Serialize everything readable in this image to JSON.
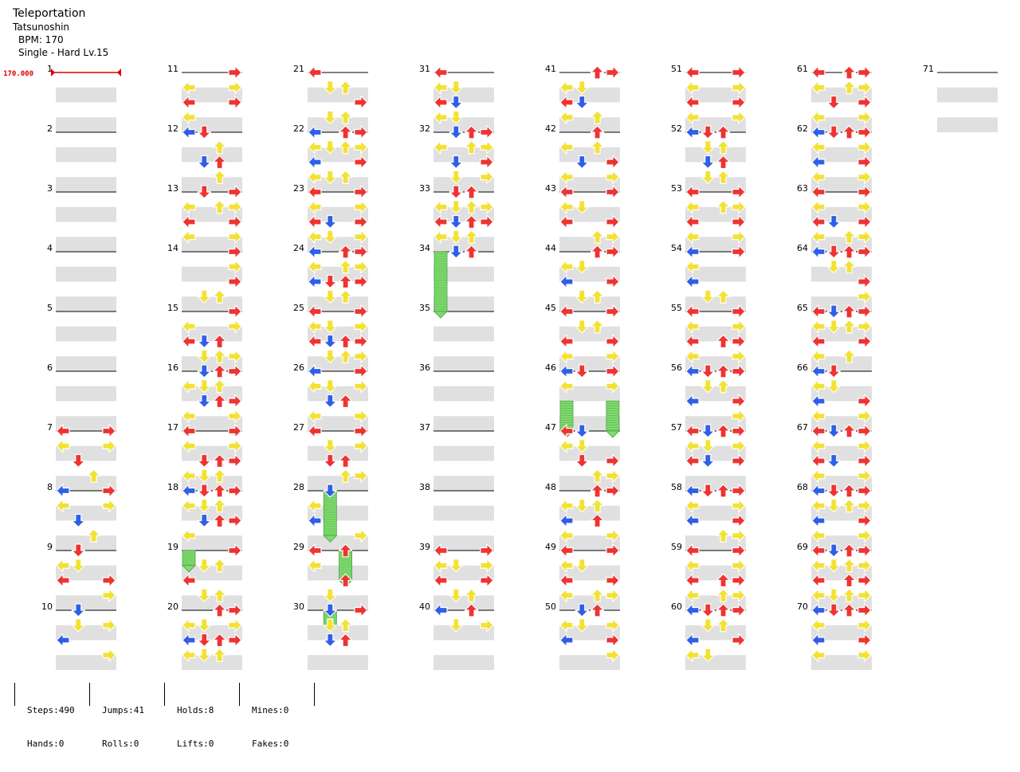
{
  "song": {
    "title": "Teleportation",
    "artist": "Tatsunoshin",
    "bpm_label": "BPM: 170",
    "chart_label": "Single - Hard  Lv.15"
  },
  "bpm_marker": {
    "measure": 1,
    "value_label": "170.000"
  },
  "measures": {
    "first": 1,
    "last": 71,
    "per_column": 10,
    "columns": 8
  },
  "colors": {
    "red": "#ee3333",
    "blue": "#2f5fe6",
    "yellow": "#f2e233",
    "hold": "#7edc6e",
    "stripe": "#e0e0e0",
    "line": "#000000",
    "bpm": "#dd0000"
  },
  "note_icons": {
    "left": "left-arrow-icon",
    "down": "down-arrow-icon",
    "up": "up-arrow-icon",
    "right": "right-arrow-icon"
  },
  "stats": [
    {
      "a": "Steps:490",
      "b": "Hands:0"
    },
    {
      "a": "Jumps:41",
      "b": "Rolls:0"
    },
    {
      "a": "Holds:8",
      "b": "Lifts:0"
    },
    {
      "a": "Mines:0",
      "b": "Fakes:0"
    }
  ],
  "notes": [
    {
      "m": 7,
      "b": 0,
      "l": "LR"
    },
    {
      "m": 7,
      "b": 1,
      "l": "LR"
    },
    {
      "m": 7,
      "b": 2,
      "l": "D"
    },
    {
      "m": 7,
      "b": 3,
      "l": "U"
    },
    {
      "m": 8,
      "b": 0,
      "l": "LR"
    },
    {
      "m": 8,
      "b": 1,
      "l": "LR"
    },
    {
      "m": 8,
      "b": 2,
      "l": "D"
    },
    {
      "m": 8,
      "b": 3,
      "l": "U"
    },
    {
      "m": 9,
      "b": 0,
      "l": "D"
    },
    {
      "m": 9,
      "b": 1,
      "l": "LD"
    },
    {
      "m": 9,
      "b": 2,
      "l": "LR"
    },
    {
      "m": 9,
      "b": 3,
      "l": "R"
    },
    {
      "m": 10,
      "b": 0,
      "l": "D"
    },
    {
      "m": 10,
      "b": 1,
      "l": "DR"
    },
    {
      "m": 10,
      "b": 2,
      "l": "L"
    },
    {
      "m": 10,
      "b": 3,
      "l": "R"
    },
    {
      "m": 11,
      "b": 0,
      "l": "R"
    },
    {
      "m": 11,
      "b": 1,
      "l": "LR"
    },
    {
      "m": 11,
      "b": 2,
      "l": "LR"
    },
    {
      "m": 11,
      "b": 3,
      "l": "L"
    },
    {
      "m": 12,
      "b": 0,
      "l": "LD"
    },
    {
      "m": 12,
      "b": 1,
      "l": "U"
    },
    {
      "m": 12,
      "b": 2,
      "l": "DU"
    },
    {
      "m": 12,
      "b": 3,
      "l": "U"
    },
    {
      "m": 13,
      "b": 0,
      "l": "DR"
    },
    {
      "m": 13,
      "b": 1,
      "l": "LUR"
    },
    {
      "m": 13,
      "b": 2,
      "l": "LR"
    },
    {
      "m": 13,
      "b": 3,
      "l": "LR"
    },
    {
      "m": 14,
      "b": 0,
      "l": "R"
    },
    {
      "m": 14,
      "b": 1,
      "l": "R"
    },
    {
      "m": 14,
      "b": 2,
      "l": "R"
    },
    {
      "m": 14,
      "b": 3,
      "l": "DU"
    },
    {
      "m": 15,
      "b": 0,
      "l": "R"
    },
    {
      "m": 15,
      "b": 1,
      "l": "LR"
    },
    {
      "m": 15,
      "b": 2,
      "l": "LDU"
    },
    {
      "m": 15,
      "b": 3,
      "l": "DUR"
    },
    {
      "m": 16,
      "b": 0,
      "l": "DUR"
    },
    {
      "m": 16,
      "b": 1,
      "l": "LDU"
    },
    {
      "m": 16,
      "b": 2,
      "l": "DUR"
    },
    {
      "m": 16,
      "b": 3,
      "l": "LR"
    },
    {
      "m": 17,
      "b": 0,
      "l": "LR"
    },
    {
      "m": 17,
      "b": 1,
      "l": "LR"
    },
    {
      "m": 17,
      "b": 2,
      "l": "DUR"
    },
    {
      "m": 17,
      "b": 3,
      "l": "LDU"
    },
    {
      "m": 18,
      "b": 0,
      "l": "LDUR"
    },
    {
      "m": 18,
      "b": 1,
      "l": "LDU"
    },
    {
      "m": 18,
      "b": 2,
      "l": "DUR"
    },
    {
      "m": 18,
      "b": 3,
      "l": "L"
    },
    {
      "m": 19,
      "b": 0,
      "l": "R"
    },
    {
      "m": 19,
      "b": 1,
      "l": "DU"
    },
    {
      "m": 19,
      "b": 2,
      "l": "L"
    },
    {
      "m": 19,
      "b": 3,
      "l": "DU"
    },
    {
      "m": 20,
      "b": 0,
      "l": "UR"
    },
    {
      "m": 20,
      "b": 1,
      "l": "LDR"
    },
    {
      "m": 20,
      "b": 2,
      "l": "LDUR"
    },
    {
      "m": 20,
      "b": 3,
      "l": "LDU"
    },
    {
      "m": 21,
      "b": 0,
      "l": "L"
    },
    {
      "m": 21,
      "b": 1,
      "l": "DU"
    },
    {
      "m": 21,
      "b": 2,
      "l": "R"
    },
    {
      "m": 21,
      "b": 3,
      "l": "DU"
    },
    {
      "m": 22,
      "b": 0,
      "l": "LUR"
    },
    {
      "m": 22,
      "b": 1,
      "l": "LDUR"
    },
    {
      "m": 22,
      "b": 2,
      "l": "LR"
    },
    {
      "m": 22,
      "b": 3,
      "l": "LDU"
    },
    {
      "m": 23,
      "b": 0,
      "l": "LR"
    },
    {
      "m": 23,
      "b": 1,
      "l": "LR"
    },
    {
      "m": 23,
      "b": 2,
      "l": "LDR"
    },
    {
      "m": 23,
      "b": 3,
      "l": "LDR"
    },
    {
      "m": 24,
      "b": 0,
      "l": "LUR"
    },
    {
      "m": 24,
      "b": 1,
      "l": "LUR"
    },
    {
      "m": 24,
      "b": 2,
      "l": "LDUR"
    },
    {
      "m": 24,
      "b": 3,
      "l": "DU"
    },
    {
      "m": 25,
      "b": 0,
      "l": "LR"
    },
    {
      "m": 25,
      "b": 1,
      "l": "LDR"
    },
    {
      "m": 25,
      "b": 2,
      "l": "LDUR"
    },
    {
      "m": 25,
      "b": 3,
      "l": "DUR"
    },
    {
      "m": 26,
      "b": 0,
      "l": "LR"
    },
    {
      "m": 26,
      "b": 1,
      "l": "LDR"
    },
    {
      "m": 26,
      "b": 2,
      "l": "DU"
    },
    {
      "m": 26,
      "b": 3,
      "l": "LR"
    },
    {
      "m": 27,
      "b": 0,
      "l": "LR"
    },
    {
      "m": 27,
      "b": 1,
      "l": "DR"
    },
    {
      "m": 27,
      "b": 2,
      "l": "DU"
    },
    {
      "m": 27,
      "b": 3,
      "l": "UR"
    },
    {
      "m": 28,
      "b": 0,
      "l": "D"
    },
    {
      "m": 28,
      "b": 1,
      "l": "L"
    },
    {
      "m": 28,
      "b": 2,
      "l": "L"
    },
    {
      "m": 28,
      "b": 3,
      "l": "R"
    },
    {
      "m": 29,
      "b": 0,
      "l": "LU"
    },
    {
      "m": 29,
      "b": 1,
      "l": "L"
    },
    {
      "m": 29,
      "b": 2,
      "l": "U"
    },
    {
      "m": 29,
      "b": 3,
      "l": "D"
    },
    {
      "m": 30,
      "b": 0,
      "l": "DR"
    },
    {
      "m": 30,
      "b": 1,
      "l": "DU"
    },
    {
      "m": 30,
      "b": 2,
      "l": "DU"
    },
    {
      "m": 30,
      "b": 3,
      "l": ""
    },
    {
      "m": 31,
      "b": 0,
      "l": "L"
    },
    {
      "m": 31,
      "b": 1,
      "l": "LD"
    },
    {
      "m": 31,
      "b": 2,
      "l": "LD"
    },
    {
      "m": 31,
      "b": 3,
      "l": "LD"
    },
    {
      "m": 32,
      "b": 0,
      "l": "DUR"
    },
    {
      "m": 32,
      "b": 1,
      "l": "LUR"
    },
    {
      "m": 32,
      "b": 2,
      "l": "DR"
    },
    {
      "m": 32,
      "b": 3,
      "l": "DR"
    },
    {
      "m": 33,
      "b": 0,
      "l": "DU"
    },
    {
      "m": 33,
      "b": 1,
      "l": "LDUR"
    },
    {
      "m": 33,
      "b": 2,
      "l": "LDUR"
    },
    {
      "m": 33,
      "b": 3,
      "l": "LDU"
    },
    {
      "m": 34,
      "b": 0,
      "l": "DU"
    },
    {
      "m": 34,
      "b": 1,
      "l": ""
    },
    {
      "m": 34,
      "b": 2,
      "l": ""
    },
    {
      "m": 34,
      "b": 3,
      "l": ""
    },
    {
      "m": 39,
      "b": 0,
      "l": "LR"
    },
    {
      "m": 39,
      "b": 1,
      "l": "LDR"
    },
    {
      "m": 39,
      "b": 2,
      "l": "LR"
    },
    {
      "m": 39,
      "b": 3,
      "l": "DU"
    },
    {
      "m": 40,
      "b": 0,
      "l": "LU"
    },
    {
      "m": 40,
      "b": 1,
      "l": "DR"
    },
    {
      "m": 40,
      "b": 2,
      "l": ""
    },
    {
      "m": 40,
      "b": 3,
      "l": ""
    },
    {
      "m": 41,
      "b": 0,
      "l": "UR"
    },
    {
      "m": 41,
      "b": 1,
      "l": "LD"
    },
    {
      "m": 41,
      "b": 2,
      "l": "LD"
    },
    {
      "m": 41,
      "b": 3,
      "l": "LU"
    },
    {
      "m": 42,
      "b": 0,
      "l": "U"
    },
    {
      "m": 42,
      "b": 1,
      "l": "LU"
    },
    {
      "m": 42,
      "b": 2,
      "l": "DR"
    },
    {
      "m": 42,
      "b": 3,
      "l": "LR"
    },
    {
      "m": 43,
      "b": 0,
      "l": "LR"
    },
    {
      "m": 43,
      "b": 1,
      "l": "LD"
    },
    {
      "m": 43,
      "b": 2,
      "l": "LR"
    },
    {
      "m": 43,
      "b": 3,
      "l": "UR"
    },
    {
      "m": 44,
      "b": 0,
      "l": "UR"
    },
    {
      "m": 44,
      "b": 1,
      "l": "LD"
    },
    {
      "m": 44,
      "b": 2,
      "l": "LR"
    },
    {
      "m": 44,
      "b": 3,
      "l": "DU"
    },
    {
      "m": 45,
      "b": 0,
      "l": "LR"
    },
    {
      "m": 45,
      "b": 1,
      "l": "DU"
    },
    {
      "m": 45,
      "b": 2,
      "l": "LR"
    },
    {
      "m": 45,
      "b": 3,
      "l": "LR"
    },
    {
      "m": 46,
      "b": 0,
      "l": "LDR"
    },
    {
      "m": 46,
      "b": 1,
      "l": "LR"
    },
    {
      "m": 46,
      "b": 2,
      "l": ""
    },
    {
      "m": 46,
      "b": 3,
      "l": ""
    },
    {
      "m": 47,
      "b": 0,
      "l": "LD"
    },
    {
      "m": 47,
      "b": 1,
      "l": "LD"
    },
    {
      "m": 47,
      "b": 2,
      "l": "DR"
    },
    {
      "m": 47,
      "b": 3,
      "l": "UR"
    },
    {
      "m": 48,
      "b": 0,
      "l": "UR"
    },
    {
      "m": 48,
      "b": 1,
      "l": "LDU"
    },
    {
      "m": 48,
      "b": 2,
      "l": "LU"
    },
    {
      "m": 48,
      "b": 3,
      "l": "LR"
    },
    {
      "m": 49,
      "b": 0,
      "l": "LR"
    },
    {
      "m": 49,
      "b": 1,
      "l": "LD"
    },
    {
      "m": 49,
      "b": 2,
      "l": "LR"
    },
    {
      "m": 49,
      "b": 3,
      "l": "LUR"
    },
    {
      "m": 50,
      "b": 0,
      "l": "DU"
    },
    {
      "m": 50,
      "b": 1,
      "l": "LDR"
    },
    {
      "m": 50,
      "b": 2,
      "l": "LR"
    },
    {
      "m": 50,
      "b": 3,
      "l": "R"
    },
    {
      "m": 51,
      "b": 0,
      "l": "LR"
    },
    {
      "m": 51,
      "b": 1,
      "l": "LR"
    },
    {
      "m": 51,
      "b": 2,
      "l": "LR"
    },
    {
      "m": 51,
      "b": 3,
      "l": "LR"
    },
    {
      "m": 52,
      "b": 0,
      "l": "LDU"
    },
    {
      "m": 52,
      "b": 1,
      "l": "DU"
    },
    {
      "m": 52,
      "b": 2,
      "l": "DU"
    },
    {
      "m": 52,
      "b": 3,
      "l": "DU"
    },
    {
      "m": 53,
      "b": 0,
      "l": "LR"
    },
    {
      "m": 53,
      "b": 1,
      "l": "LUR"
    },
    {
      "m": 53,
      "b": 2,
      "l": "LR"
    },
    {
      "m": 53,
      "b": 3,
      "l": "LR"
    },
    {
      "m": 54,
      "b": 0,
      "l": "LR"
    },
    {
      "m": 54,
      "b": 1,
      "l": "L"
    },
    {
      "m": 54,
      "b": 2,
      "l": "L"
    },
    {
      "m": 54,
      "b": 3,
      "l": "DU"
    },
    {
      "m": 55,
      "b": 0,
      "l": "LR"
    },
    {
      "m": 55,
      "b": 1,
      "l": "LR"
    },
    {
      "m": 55,
      "b": 2,
      "l": "LUR"
    },
    {
      "m": 55,
      "b": 3,
      "l": "LR"
    },
    {
      "m": 56,
      "b": 0,
      "l": "LDUR"
    },
    {
      "m": 56,
      "b": 1,
      "l": "DU"
    },
    {
      "m": 56,
      "b": 2,
      "l": "LR"
    },
    {
      "m": 56,
      "b": 3,
      "l": "R"
    },
    {
      "m": 57,
      "b": 0,
      "l": "LDUR"
    },
    {
      "m": 57,
      "b": 1,
      "l": "LDR"
    },
    {
      "m": 57,
      "b": 2,
      "l": "LDR"
    },
    {
      "m": 57,
      "b": 3,
      "l": ""
    },
    {
      "m": 58,
      "b": 0,
      "l": "LDUR"
    },
    {
      "m": 58,
      "b": 1,
      "l": "LR"
    },
    {
      "m": 58,
      "b": 2,
      "l": "LR"
    },
    {
      "m": 58,
      "b": 3,
      "l": "UR"
    },
    {
      "m": 59,
      "b": 0,
      "l": "LR"
    },
    {
      "m": 59,
      "b": 1,
      "l": "LR"
    },
    {
      "m": 59,
      "b": 2,
      "l": "LUR"
    },
    {
      "m": 59,
      "b": 3,
      "l": "LUR"
    },
    {
      "m": 60,
      "b": 0,
      "l": "LDUR"
    },
    {
      "m": 60,
      "b": 1,
      "l": "DU"
    },
    {
      "m": 60,
      "b": 2,
      "l": "LR"
    },
    {
      "m": 60,
      "b": 3,
      "l": "LD"
    },
    {
      "m": 61,
      "b": 0,
      "l": "LUR"
    },
    {
      "m": 61,
      "b": 1,
      "l": "LUR"
    },
    {
      "m": 61,
      "b": 2,
      "l": "DR"
    },
    {
      "m": 61,
      "b": 3,
      "l": "LR"
    },
    {
      "m": 62,
      "b": 0,
      "l": "LDUR"
    },
    {
      "m": 62,
      "b": 1,
      "l": "LR"
    },
    {
      "m": 62,
      "b": 2,
      "l": "LR"
    },
    {
      "m": 62,
      "b": 3,
      "l": "LR"
    },
    {
      "m": 63,
      "b": 0,
      "l": "LR"
    },
    {
      "m": 63,
      "b": 1,
      "l": "LR"
    },
    {
      "m": 63,
      "b": 2,
      "l": "LDR"
    },
    {
      "m": 63,
      "b": 3,
      "l": "LUR"
    },
    {
      "m": 64,
      "b": 0,
      "l": "LDUR"
    },
    {
      "m": 64,
      "b": 1,
      "l": "DU"
    },
    {
      "m": 64,
      "b": 2,
      "l": "R"
    },
    {
      "m": 64,
      "b": 3,
      "l": "R"
    },
    {
      "m": 65,
      "b": 0,
      "l": "LDUR"
    },
    {
      "m": 65,
      "b": 1,
      "l": "LDUR"
    },
    {
      "m": 65,
      "b": 2,
      "l": "LR"
    },
    {
      "m": 65,
      "b": 3,
      "l": "LU"
    },
    {
      "m": 66,
      "b": 0,
      "l": "LD"
    },
    {
      "m": 66,
      "b": 1,
      "l": "LD"
    },
    {
      "m": 66,
      "b": 2,
      "l": "LR"
    },
    {
      "m": 66,
      "b": 3,
      "l": "LR"
    },
    {
      "m": 67,
      "b": 0,
      "l": "LDUR"
    },
    {
      "m": 67,
      "b": 1,
      "l": "LR"
    },
    {
      "m": 67,
      "b": 2,
      "l": "LDR"
    },
    {
      "m": 67,
      "b": 3,
      "l": "LR"
    },
    {
      "m": 68,
      "b": 0,
      "l": "LDUR"
    },
    {
      "m": 68,
      "b": 1,
      "l": "LDUR"
    },
    {
      "m": 68,
      "b": 2,
      "l": "LR"
    },
    {
      "m": 68,
      "b": 3,
      "l": "LR"
    },
    {
      "m": 69,
      "b": 0,
      "l": "LDUR"
    },
    {
      "m": 69,
      "b": 1,
      "l": "LDUR"
    },
    {
      "m": 69,
      "b": 2,
      "l": "LUR"
    },
    {
      "m": 69,
      "b": 3,
      "l": "LDUR"
    },
    {
      "m": 70,
      "b": 0,
      "l": "LDUR"
    },
    {
      "m": 70,
      "b": 1,
      "l": "LR"
    },
    {
      "m": 70,
      "b": 2,
      "l": "LR"
    },
    {
      "m": 70,
      "b": 3,
      "l": "LR"
    }
  ],
  "holds": [
    {
      "m": 19,
      "b": 0,
      "lane": "L",
      "len": 1
    },
    {
      "m": 28,
      "b": 0,
      "lane": "D",
      "len": 3
    },
    {
      "m": 29,
      "b": 0,
      "lane": "U",
      "len": 2
    },
    {
      "m": 30,
      "b": 0,
      "lane": "D",
      "len": 1
    },
    {
      "m": 34,
      "b": 0,
      "lane": "L",
      "len": 4
    },
    {
      "m": 46,
      "b": 2,
      "lane": "L",
      "len": 2
    },
    {
      "m": 46,
      "b": 2,
      "lane": "R",
      "len": 2
    }
  ]
}
